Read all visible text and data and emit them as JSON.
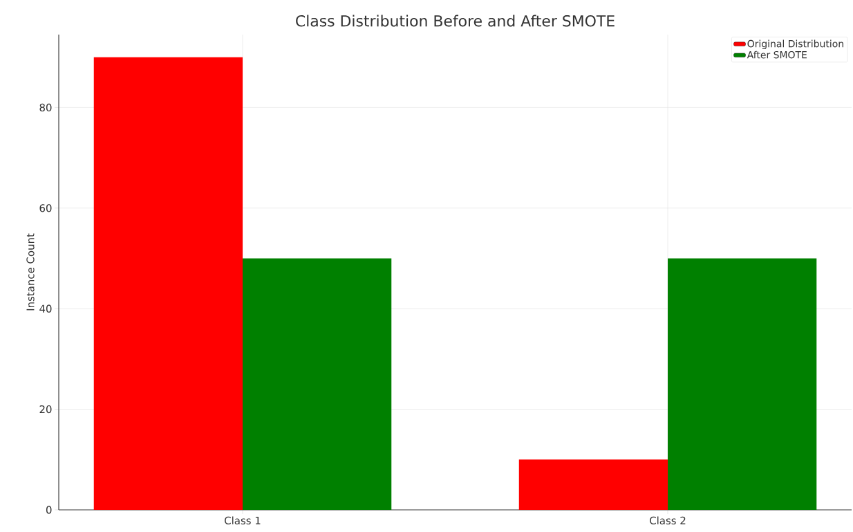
{
  "chart_data": {
    "type": "bar",
    "title": "Class Distribution Before and After SMOTE",
    "ylabel": "Instance Count",
    "categories": [
      "Class 1",
      "Class 2"
    ],
    "series": [
      {
        "name": "Original Distribution",
        "color": "#ff0000",
        "values": [
          90,
          10
        ]
      },
      {
        "name": "After SMOTE",
        "color": "#008000",
        "values": [
          50,
          50
        ]
      }
    ],
    "ylim": [
      0,
      94.5
    ],
    "yticks": [
      0,
      20,
      40,
      60,
      80
    ],
    "grid": true,
    "legend": "top right"
  }
}
